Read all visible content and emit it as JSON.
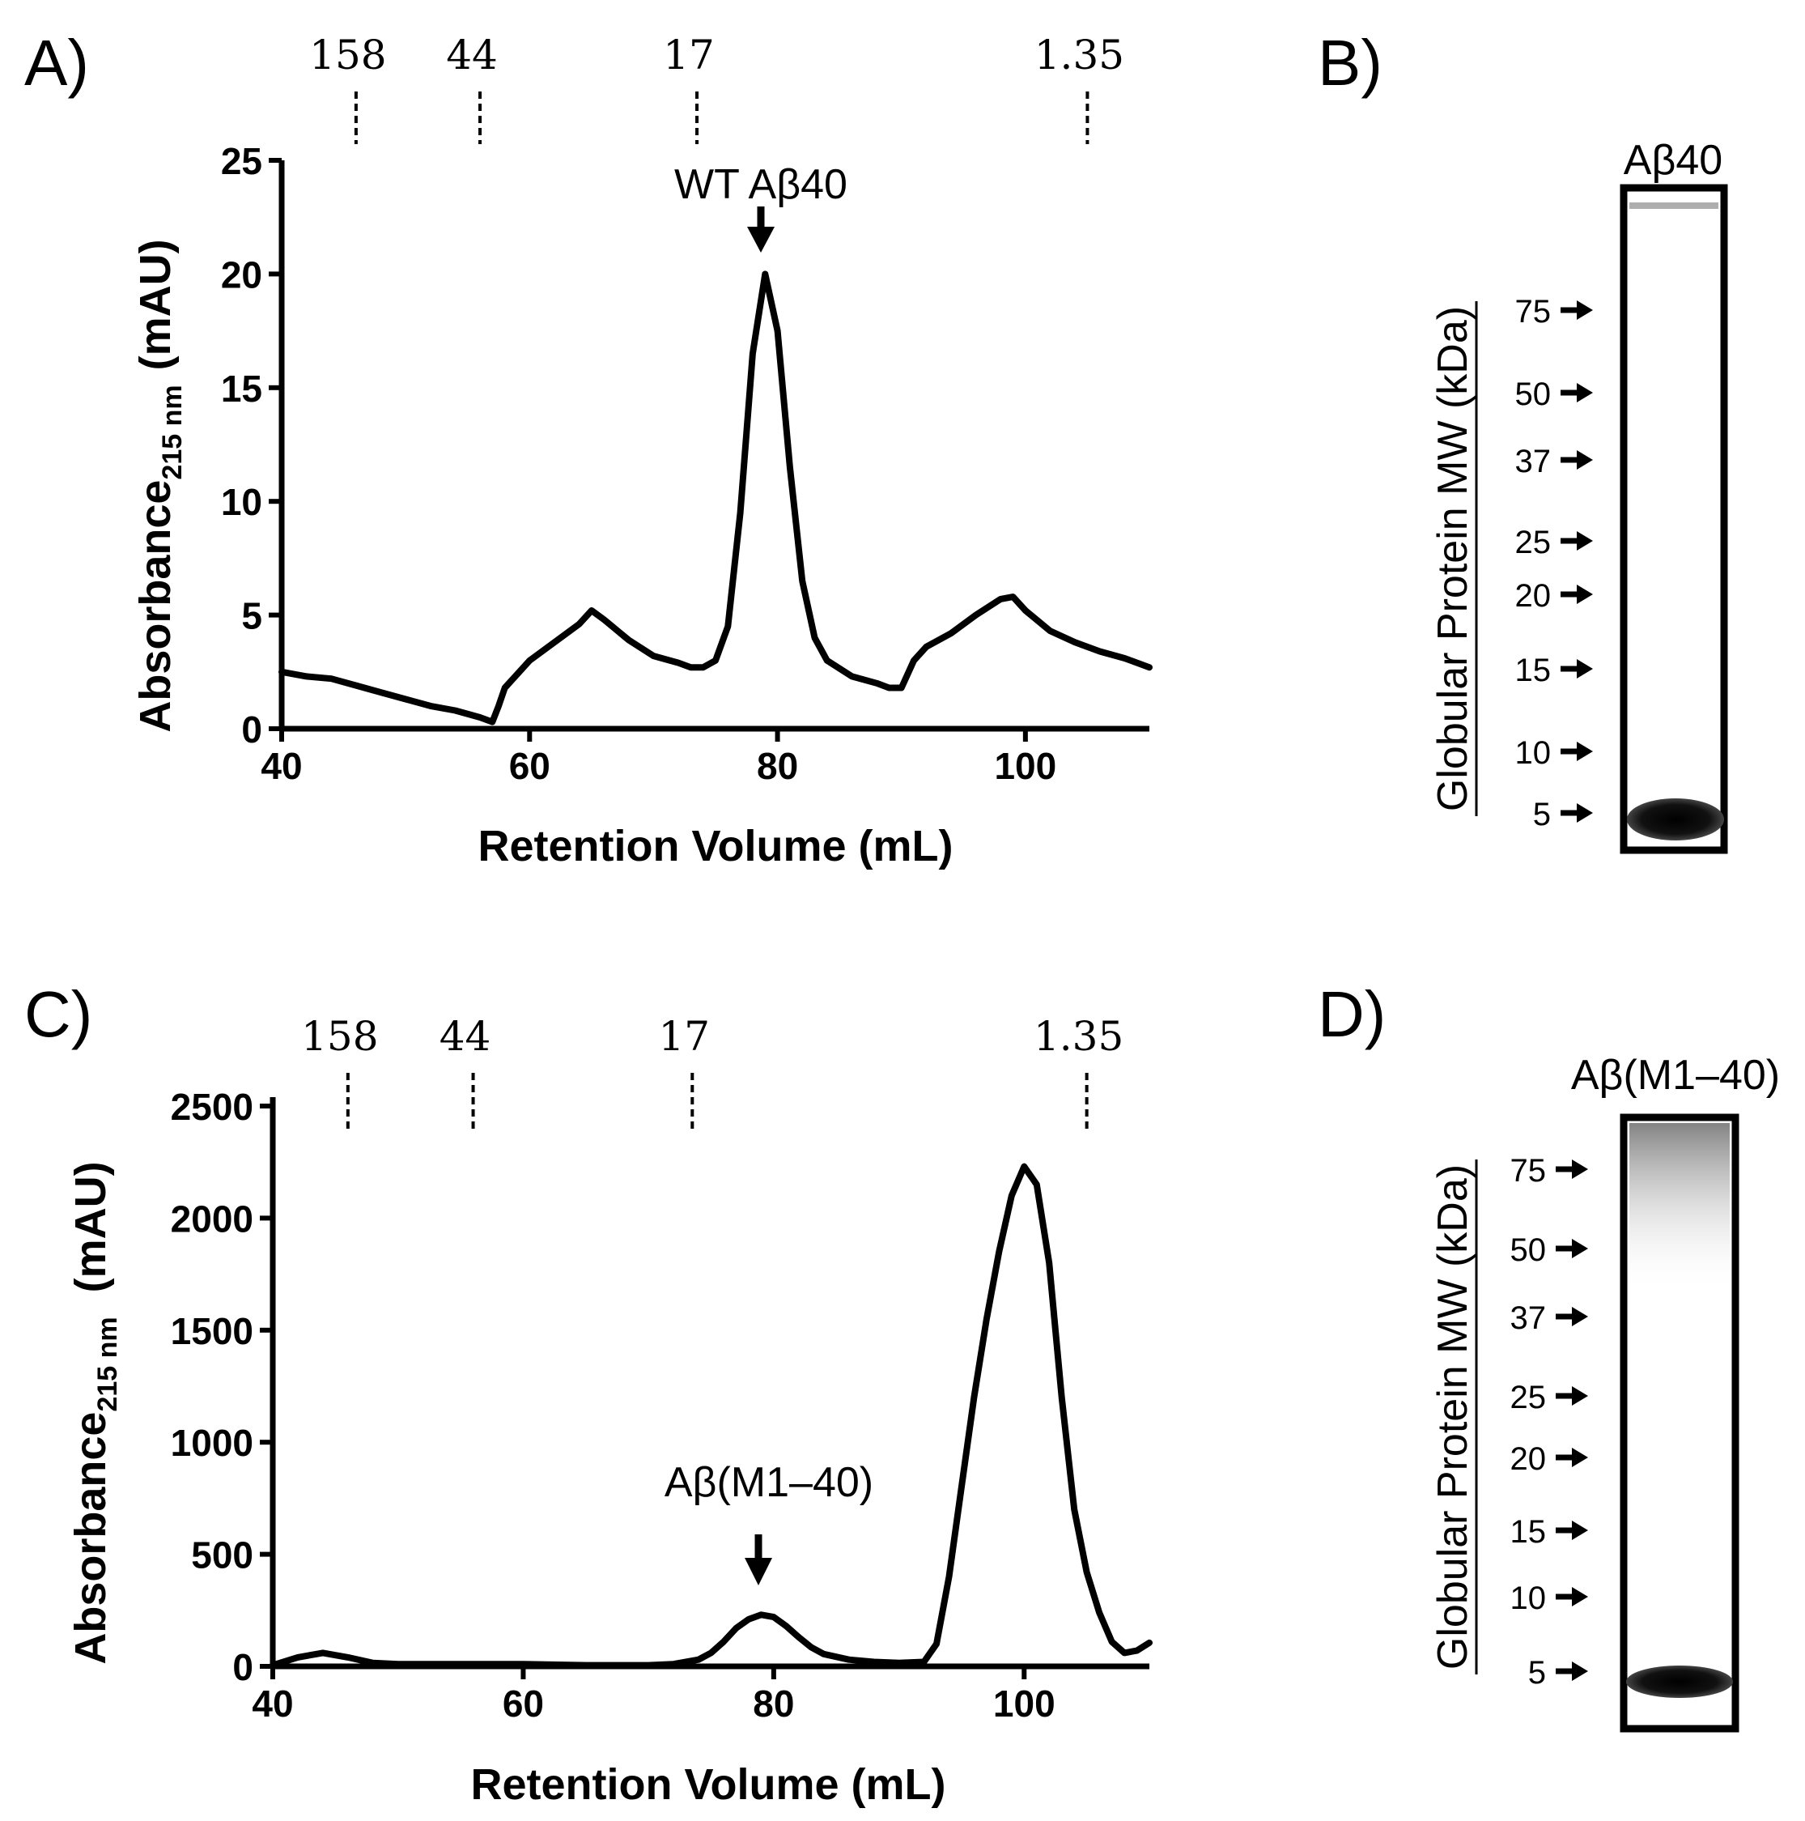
{
  "panels": {
    "A": {
      "letter": "A)",
      "chart_data": {
        "type": "line",
        "title": "",
        "xlabel": "Retention Volume (mL)",
        "ylabel_main": "Absorbance",
        "ylabel_sub": "215 nm",
        "ylabel_unit": "(mAU)",
        "xlim": [
          40,
          110
        ],
        "ylim": [
          0,
          25
        ],
        "x_ticks": [
          40,
          60,
          80,
          100
        ],
        "y_ticks": [
          0,
          5,
          10,
          15,
          20,
          25
        ],
        "y_tick_labels": [
          "0",
          "5",
          "10",
          "15",
          "20",
          "25"
        ],
        "annotation": {
          "text": "WT Aβ40",
          "x": 79,
          "y": 20
        },
        "mw_markers": [
          {
            "label": "158",
            "x": 46
          },
          {
            "label": "44",
            "x": 56
          },
          {
            "label": "17",
            "x": 73.5
          },
          {
            "label": "1.35",
            "x": 105
          }
        ],
        "series": [
          {
            "name": "WT Aβ40",
            "x": [
              40,
              42,
              44,
              46,
              48,
              50,
              52,
              54,
              56,
              57,
              57.5,
              58,
              60,
              62,
              64,
              65,
              66,
              68,
              70,
              72,
              73,
              74,
              75,
              76,
              77,
              78,
              79,
              80,
              81,
              82,
              83,
              84,
              86,
              88,
              89,
              90,
              91,
              92,
              94,
              96,
              98,
              99,
              100,
              102,
              104,
              106,
              108,
              110
            ],
            "y": [
              2.5,
              2.3,
              2.2,
              1.9,
              1.6,
              1.3,
              1.0,
              0.8,
              0.5,
              0.3,
              1.0,
              1.8,
              3.0,
              3.8,
              4.6,
              5.2,
              4.8,
              3.9,
              3.2,
              2.9,
              2.7,
              2.7,
              3.0,
              4.5,
              9.5,
              16.5,
              20.0,
              17.5,
              11.5,
              6.5,
              4.0,
              3.0,
              2.3,
              2.0,
              1.8,
              1.8,
              3.0,
              3.6,
              4.2,
              5.0,
              5.7,
              5.8,
              5.2,
              4.3,
              3.8,
              3.4,
              3.1,
              2.7
            ]
          }
        ]
      }
    },
    "B": {
      "letter": "B)",
      "lane_label": "Aβ40",
      "axis_label": "Globular Protein MW (kDa)",
      "markers": [
        "75",
        "50",
        "37",
        "25",
        "20",
        "15",
        "10",
        "5"
      ]
    },
    "C": {
      "letter": "C)",
      "chart_data": {
        "type": "line",
        "title": "",
        "xlabel": "Retention Volume (mL)",
        "ylabel_main": "Absorbance",
        "ylabel_sub": "215 nm",
        "ylabel_unit": "(mAU)",
        "xlim": [
          40,
          110
        ],
        "ylim": [
          0,
          2500
        ],
        "x_ticks": [
          40,
          60,
          80,
          100
        ],
        "y_ticks": [
          0,
          500,
          1000,
          1500,
          2000,
          2500
        ],
        "y_tick_labels": [
          "0",
          "500",
          "1000",
          "1500",
          "2000",
          "2500"
        ],
        "annotation": {
          "text": "Aβ(M1–40)",
          "x": 79,
          "y": 230
        },
        "mw_markers": [
          {
            "label": "158",
            "x": 46
          },
          {
            "label": "44",
            "x": 56
          },
          {
            "label": "17",
            "x": 73.5
          },
          {
            "label": "1.35",
            "x": 105
          }
        ],
        "series": [
          {
            "name": "Aβ(M1–40)",
            "x": [
              40,
              42,
              44,
              46,
              48,
              50,
              55,
              60,
              65,
              70,
              72,
              74,
              75,
              76,
              77,
              78,
              79,
              80,
              81,
              82,
              83,
              84,
              86,
              88,
              90,
              92,
              93,
              94,
              95,
              96,
              97,
              98,
              99,
              100,
              101,
              102,
              103,
              104,
              105,
              106,
              107,
              108,
              109,
              110
            ],
            "y": [
              5,
              40,
              60,
              40,
              15,
              10,
              10,
              10,
              5,
              5,
              10,
              30,
              60,
              110,
              170,
              210,
              230,
              220,
              180,
              130,
              85,
              55,
              30,
              20,
              15,
              20,
              100,
              400,
              800,
              1200,
              1550,
              1850,
              2100,
              2230,
              2150,
              1800,
              1200,
              700,
              420,
              240,
              110,
              60,
              70,
              105
            ]
          }
        ]
      }
    },
    "D": {
      "letter": "D)",
      "lane_label": "Aβ(M1–40)",
      "axis_label": "Globular Protein MW (kDa)",
      "markers": [
        "75",
        "50",
        "37",
        "25",
        "20",
        "15",
        "10",
        "5"
      ]
    }
  },
  "colors": {
    "ink": "#000000",
    "background": "#ffffff"
  }
}
